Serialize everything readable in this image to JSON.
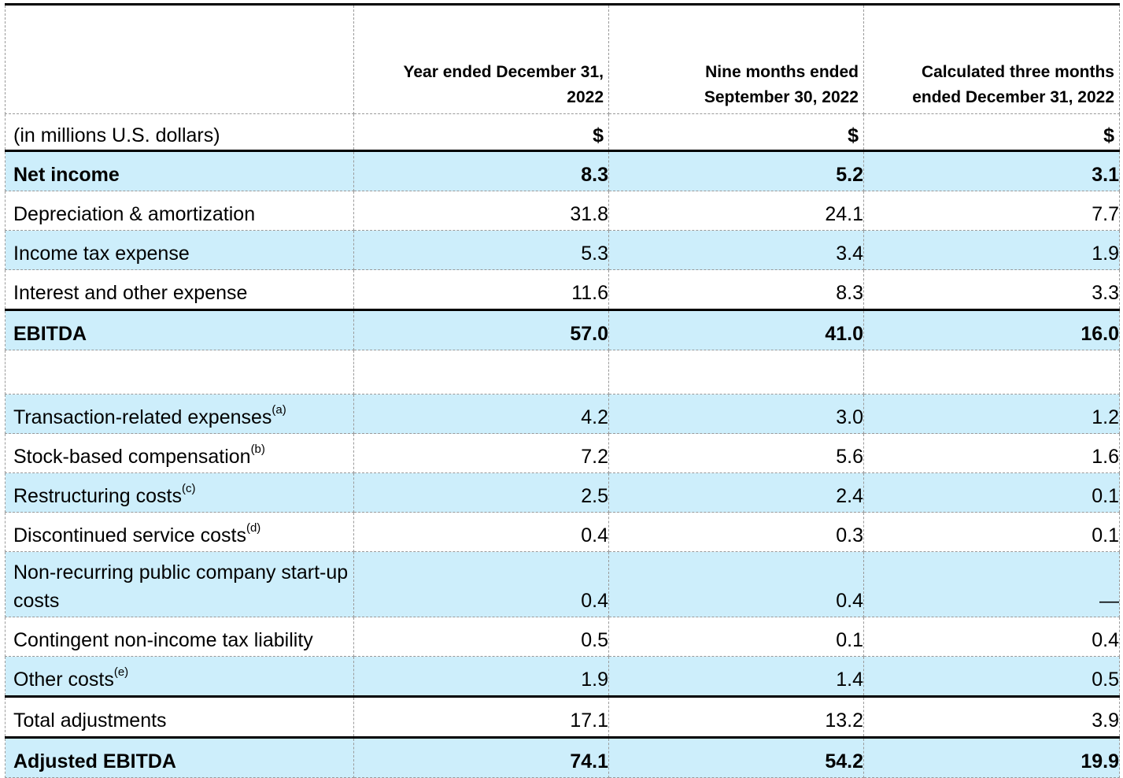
{
  "header": {
    "col1": "Year ended December 31, 2022",
    "col2": "Nine months ended September 30, 2022",
    "col3": "Calculated three months ended December 31, 2022"
  },
  "units": {
    "label": "(in millions U.S. dollars)",
    "col1": "$",
    "col2": "$",
    "col3": "$"
  },
  "rows": [
    {
      "label": "Net income",
      "sup": "",
      "v1": "8.3",
      "v2": "5.2",
      "v3": "3.1"
    },
    {
      "label": "Depreciation & amortization",
      "sup": "",
      "v1": "31.8",
      "v2": "24.1",
      "v3": "7.7"
    },
    {
      "label": "Income tax expense",
      "sup": "",
      "v1": "5.3",
      "v2": "3.4",
      "v3": "1.9"
    },
    {
      "label": "Interest and other expense",
      "sup": "",
      "v1": "11.6",
      "v2": "8.3",
      "v3": "3.3"
    },
    {
      "label": "EBITDA",
      "sup": "",
      "v1": "57.0",
      "v2": "41.0",
      "v3": "16.0"
    },
    {
      "label": "Transaction-related expenses",
      "sup": "(a)",
      "v1": "4.2",
      "v2": "3.0",
      "v3": "1.2"
    },
    {
      "label": "Stock-based compensation",
      "sup": "(b)",
      "v1": "7.2",
      "v2": "5.6",
      "v3": "1.6"
    },
    {
      "label": "Restructuring costs",
      "sup": "(c)",
      "v1": "2.5",
      "v2": "2.4",
      "v3": "0.1"
    },
    {
      "label": "Discontinued service costs",
      "sup": "(d)",
      "v1": "0.4",
      "v2": "0.3",
      "v3": "0.1"
    },
    {
      "label": "Non-recurring public company start-up costs",
      "sup": "",
      "v1": "0.4",
      "v2": "0.4",
      "v3": "—"
    },
    {
      "label": "Contingent non-income tax liability",
      "sup": "",
      "v1": "0.5",
      "v2": "0.1",
      "v3": "0.4"
    },
    {
      "label": "Other costs",
      "sup": "(e)",
      "v1": "1.9",
      "v2": "1.4",
      "v3": "0.5"
    },
    {
      "label": "Total adjustments",
      "sup": "",
      "v1": "17.1",
      "v2": "13.2",
      "v3": "3.9"
    },
    {
      "label": "Adjusted EBITDA",
      "sup": "",
      "v1": "74.1",
      "v2": "54.2",
      "v3": "19.9"
    }
  ]
}
